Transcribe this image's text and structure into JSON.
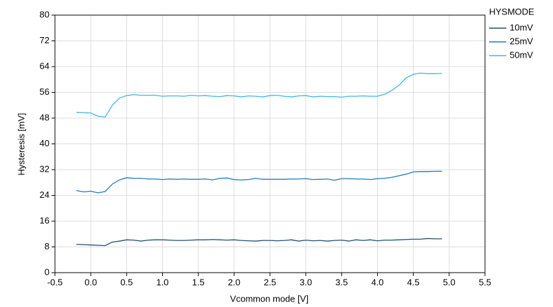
{
  "chart_data": {
    "type": "line",
    "xlabel": "Vcommon mode [V]",
    "ylabel": "Hysteresis [mV]",
    "legend_title": "HYSMODE",
    "legend_position": "right",
    "grid": true,
    "xlim": [
      -0.5,
      5.5
    ],
    "ylim": [
      0,
      80
    ],
    "xticks": [
      -0.5,
      {
        "value": 0,
        "label": "0.0"
      },
      0.5,
      {
        "value": 1,
        "label": "1.0"
      },
      1.5,
      {
        "value": 2,
        "label": "2.0"
      },
      2.5,
      {
        "value": 3,
        "label": "3.0"
      },
      3.5,
      {
        "value": 4,
        "label": "4.0"
      },
      4.5,
      {
        "value": 5,
        "label": "5.0"
      },
      5.5
    ],
    "yticks": [
      0,
      8,
      16,
      24,
      32,
      40,
      48,
      56,
      64,
      72,
      80
    ],
    "x": [
      -0.2,
      -0.1,
      0,
      0.1,
      0.2,
      0.3,
      0.4,
      0.5,
      0.6,
      0.7,
      0.8,
      0.9,
      1.0,
      1.1,
      1.2,
      1.3,
      1.4,
      1.5,
      1.6,
      1.7,
      1.8,
      1.9,
      2.0,
      2.1,
      2.2,
      2.3,
      2.4,
      2.5,
      2.6,
      2.7,
      2.8,
      2.9,
      3.0,
      3.1,
      3.2,
      3.3,
      3.4,
      3.5,
      3.6,
      3.7,
      3.8,
      3.9,
      4.0,
      4.1,
      4.2,
      4.3,
      4.4,
      4.5,
      4.6,
      4.7,
      4.8,
      4.9
    ],
    "series": [
      {
        "name": "10mV",
        "color": "#1b4f7a",
        "values": [
          8.8,
          8.7,
          8.6,
          8.5,
          8.4,
          9.5,
          9.8,
          10.2,
          10.1,
          9.8,
          10.1,
          10.2,
          10.2,
          10.1,
          10.0,
          10.0,
          10.1,
          10.2,
          10.2,
          10.3,
          10.2,
          10.1,
          10.2,
          10.0,
          9.9,
          9.8,
          10.0,
          10.0,
          9.9,
          10.0,
          10.2,
          9.8,
          10.1,
          9.9,
          10.0,
          9.8,
          10.0,
          10.1,
          9.8,
          10.2,
          10.0,
          10.2,
          9.9,
          10.1,
          10.1,
          10.2,
          10.3,
          10.4,
          10.4,
          10.6,
          10.5,
          10.5
        ]
      },
      {
        "name": "25mV",
        "color": "#1a7abf",
        "values": [
          25.5,
          25.1,
          25.3,
          24.8,
          25.2,
          27.5,
          28.8,
          29.5,
          29.3,
          29.3,
          29.1,
          29.1,
          28.9,
          29.1,
          29.0,
          29.1,
          29.0,
          29.0,
          29.1,
          28.8,
          29.3,
          29.4,
          28.9,
          28.8,
          28.9,
          29.3,
          29.0,
          29.0,
          29.0,
          29.0,
          29.1,
          29.1,
          29.2,
          28.9,
          29.0,
          29.1,
          28.7,
          29.2,
          29.2,
          29.1,
          29.1,
          28.9,
          29.2,
          29.3,
          29.6,
          30.1,
          30.6,
          31.3,
          31.4,
          31.4,
          31.5,
          31.5
        ]
      },
      {
        "name": "50mV",
        "color": "#3ab8ea",
        "values": [
          49.8,
          49.7,
          49.6,
          48.6,
          48.3,
          52.0,
          54.2,
          55.0,
          55.3,
          55.1,
          55.1,
          55.1,
          54.8,
          54.9,
          54.9,
          54.8,
          55.1,
          54.9,
          55.0,
          54.8,
          54.7,
          55.0,
          54.9,
          54.6,
          54.9,
          54.8,
          54.6,
          55.0,
          55.1,
          54.8,
          54.6,
          54.9,
          55.0,
          54.6,
          54.8,
          54.7,
          54.7,
          54.5,
          54.8,
          54.8,
          54.9,
          54.8,
          54.8,
          55.4,
          56.6,
          58.2,
          60.5,
          61.6,
          62.0,
          61.8,
          61.8,
          61.9
        ]
      }
    ]
  }
}
